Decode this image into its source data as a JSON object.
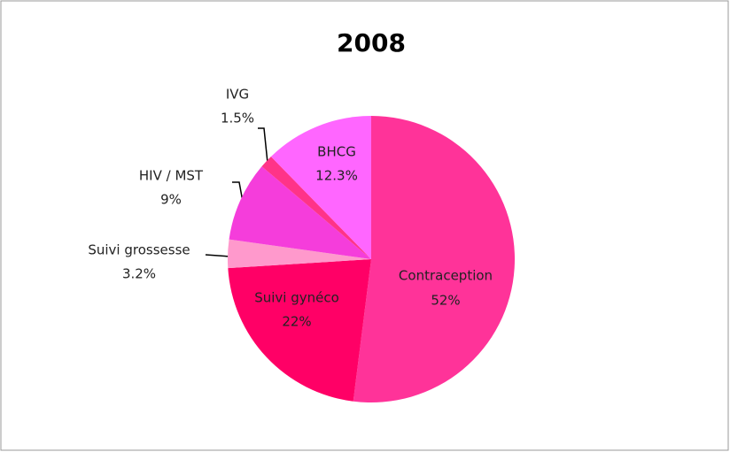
{
  "chart_data": {
    "type": "pie",
    "title": "2008",
    "categories": [
      "Contraception",
      "Suivi gynéco",
      "Suivi grossesse",
      "HIV / MST",
      "IVG",
      "BHCG"
    ],
    "values": [
      52,
      22,
      3.2,
      9,
      1.5,
      12.3
    ],
    "value_labels": [
      "52%",
      "22%",
      "3.2%",
      "9%",
      "1.5%",
      "12.3%"
    ],
    "colors": [
      "#ff3399",
      "#ff0066",
      "#ff99cc",
      "#f53ddb",
      "#ff3388",
      "#ff66ff"
    ]
  }
}
